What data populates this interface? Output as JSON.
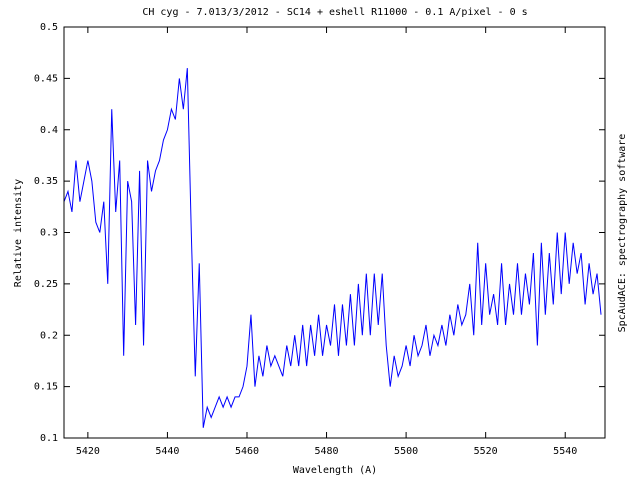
{
  "chart_data": {
    "type": "line",
    "title": "CH cyg - 7.013/3/2012 - SC14 + eshell R11000 - 0.1 A/pixel - 0 s",
    "x_label": "Wavelength (A)",
    "y_label": "Relative intensity",
    "side_note": "SpcAudACE: spectrography software",
    "color": "#0000ff",
    "xlim": [
      5414,
      5550
    ],
    "xticks": [
      5420,
      5440,
      5460,
      5480,
      5500,
      5520,
      5540
    ],
    "ylim": [
      0.1,
      0.5
    ],
    "yticks": [
      0.1,
      0.15,
      0.2,
      0.25,
      0.3,
      0.35,
      0.4,
      0.45,
      0.5
    ],
    "x": [
      5414,
      5415,
      5416,
      5417,
      5418,
      5419,
      5420,
      5421,
      5422,
      5423,
      5424,
      5425,
      5426,
      5427,
      5428,
      5429,
      5430,
      5431,
      5432,
      5433,
      5434,
      5435,
      5436,
      5437,
      5438,
      5439,
      5440,
      5441,
      5442,
      5443,
      5444,
      5445,
      5446,
      5447,
      5448,
      5449,
      5450,
      5451,
      5452,
      5453,
      5454,
      5455,
      5456,
      5457,
      5458,
      5459,
      5460,
      5461,
      5462,
      5463,
      5464,
      5465,
      5466,
      5467,
      5468,
      5469,
      5470,
      5471,
      5472,
      5473,
      5474,
      5475,
      5476,
      5477,
      5478,
      5479,
      5480,
      5481,
      5482,
      5483,
      5484,
      5485,
      5486,
      5487,
      5488,
      5489,
      5490,
      5491,
      5492,
      5493,
      5494,
      5495,
      5496,
      5497,
      5498,
      5499,
      5500,
      5501,
      5502,
      5503,
      5504,
      5505,
      5506,
      5507,
      5508,
      5509,
      5510,
      5511,
      5512,
      5513,
      5514,
      5515,
      5516,
      5517,
      5518,
      5519,
      5520,
      5521,
      5522,
      5523,
      5524,
      5525,
      5526,
      5527,
      5528,
      5529,
      5530,
      5531,
      5532,
      5533,
      5534,
      5535,
      5536,
      5537,
      5538,
      5539,
      5540,
      5541,
      5542,
      5543,
      5544,
      5545,
      5546,
      5547,
      5548,
      5549
    ],
    "values": [
      0.33,
      0.34,
      0.32,
      0.37,
      0.33,
      0.35,
      0.37,
      0.35,
      0.31,
      0.3,
      0.33,
      0.25,
      0.42,
      0.32,
      0.37,
      0.18,
      0.35,
      0.33,
      0.21,
      0.36,
      0.19,
      0.37,
      0.34,
      0.36,
      0.37,
      0.39,
      0.4,
      0.42,
      0.41,
      0.45,
      0.42,
      0.46,
      0.3,
      0.16,
      0.27,
      0.11,
      0.13,
      0.12,
      0.13,
      0.14,
      0.13,
      0.14,
      0.13,
      0.14,
      0.14,
      0.15,
      0.17,
      0.22,
      0.15,
      0.18,
      0.16,
      0.19,
      0.17,
      0.18,
      0.17,
      0.16,
      0.19,
      0.17,
      0.2,
      0.17,
      0.21,
      0.17,
      0.21,
      0.18,
      0.22,
      0.18,
      0.21,
      0.19,
      0.23,
      0.18,
      0.23,
      0.19,
      0.24,
      0.19,
      0.25,
      0.2,
      0.26,
      0.2,
      0.26,
      0.21,
      0.26,
      0.19,
      0.15,
      0.18,
      0.16,
      0.17,
      0.19,
      0.17,
      0.2,
      0.18,
      0.19,
      0.21,
      0.18,
      0.2,
      0.19,
      0.21,
      0.19,
      0.22,
      0.2,
      0.23,
      0.21,
      0.22,
      0.25,
      0.2,
      0.29,
      0.21,
      0.27,
      0.22,
      0.24,
      0.21,
      0.27,
      0.21,
      0.25,
      0.22,
      0.27,
      0.22,
      0.26,
      0.23,
      0.28,
      0.19,
      0.29,
      0.22,
      0.28,
      0.23,
      0.3,
      0.24,
      0.3,
      0.25,
      0.29,
      0.26,
      0.28,
      0.23,
      0.27,
      0.24,
      0.26,
      0.22
    ]
  }
}
